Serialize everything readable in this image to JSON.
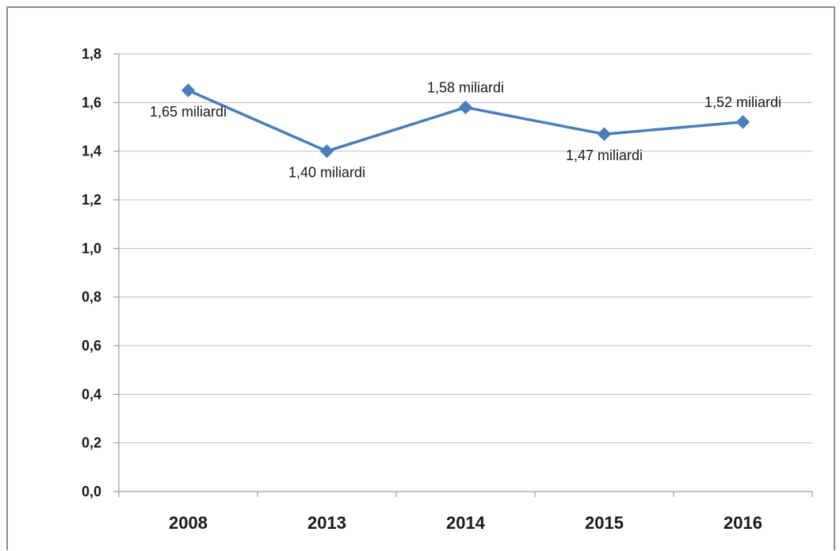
{
  "chart_data": {
    "type": "line",
    "title": "",
    "xlabel": "",
    "ylabel": "",
    "categories": [
      "2008",
      "2013",
      "2014",
      "2015",
      "2016"
    ],
    "series": [
      {
        "values": [
          1.65,
          1.4,
          1.58,
          1.47,
          1.52
        ],
        "data_labels": [
          "1,65 miliardi",
          "1,40 miliardi",
          "1,58 miliardi",
          "1,47 miliardi",
          "1,52 miliardi"
        ],
        "label_positions": [
          "below",
          "below",
          "above",
          "below",
          "above"
        ],
        "color": "#4a7ebb",
        "marker": "diamond"
      }
    ],
    "y_ticks": [
      "0,0",
      "0,2",
      "0,4",
      "0,6",
      "0,8",
      "1,0",
      "1,2",
      "1,4",
      "1,6",
      "1,8"
    ],
    "ylim": [
      0,
      1.8
    ],
    "grid": true,
    "legend": "none"
  },
  "colors": {
    "line": "#4a7ebb",
    "grid": "#bfbfbf",
    "axis": "#8c8c8c",
    "frame": "#8c8c8c"
  }
}
